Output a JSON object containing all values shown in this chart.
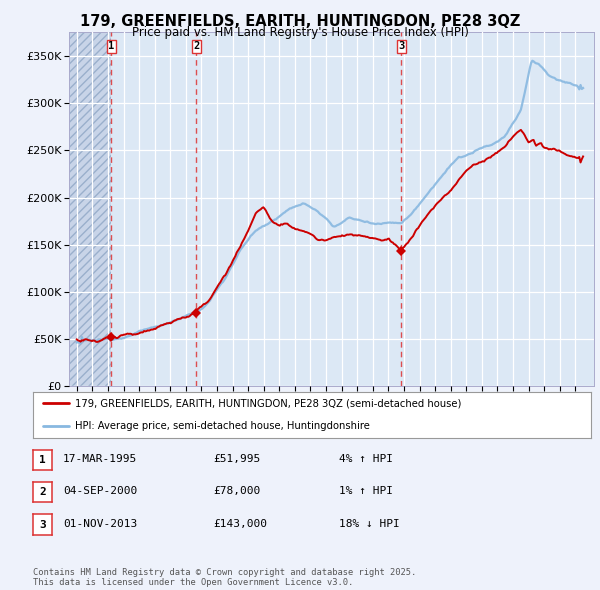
{
  "title_line1": "179, GREENFIELDS, EARITH, HUNTINGDON, PE28 3QZ",
  "title_line2": "Price paid vs. HM Land Registry's House Price Index (HPI)",
  "background_color": "#eef2fb",
  "plot_bg_color": "#dce8f5",
  "sale_color": "#cc0000",
  "hpi_color": "#88b8e0",
  "vline_color": "#dd3333",
  "sales": [
    {
      "date_num": 1995.21,
      "price": 51995,
      "label": "1"
    },
    {
      "date_num": 2000.67,
      "price": 78000,
      "label": "2"
    },
    {
      "date_num": 2013.83,
      "price": 143000,
      "label": "3"
    }
  ],
  "legend_entries": [
    "179, GREENFIELDS, EARITH, HUNTINGDON, PE28 3QZ (semi-detached house)",
    "HPI: Average price, semi-detached house, Huntingdonshire"
  ],
  "table_rows": [
    {
      "num": "1",
      "date": "17-MAR-1995",
      "price": "£51,995",
      "change": "4% ↑ HPI"
    },
    {
      "num": "2",
      "date": "04-SEP-2000",
      "price": "£78,000",
      "change": "1% ↑ HPI"
    },
    {
      "num": "3",
      "date": "01-NOV-2013",
      "price": "£143,000",
      "change": "18% ↓ HPI"
    }
  ],
  "footnote": "Contains HM Land Registry data © Crown copyright and database right 2025.\nThis data is licensed under the Open Government Licence v3.0.",
  "ylim": [
    0,
    375000
  ],
  "yticks": [
    0,
    50000,
    100000,
    150000,
    200000,
    250000,
    300000,
    350000
  ],
  "ytick_labels": [
    "£0",
    "£50K",
    "£100K",
    "£150K",
    "£200K",
    "£250K",
    "£300K",
    "£350K"
  ],
  "xlim_start": 1992.5,
  "xlim_end": 2026.2
}
